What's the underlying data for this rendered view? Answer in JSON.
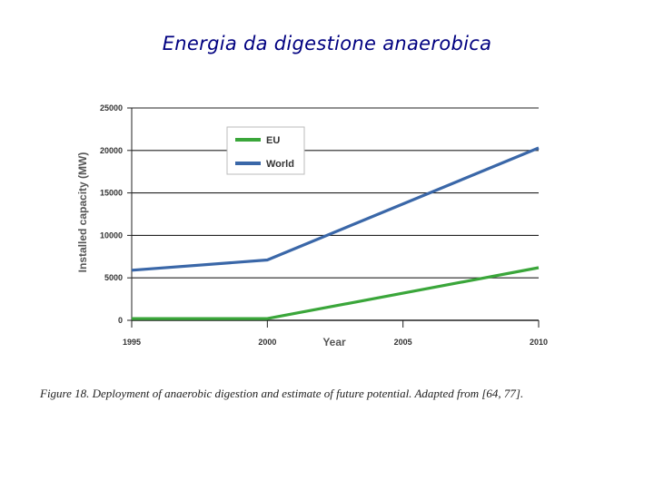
{
  "slide": {
    "title": "Energia da digestione anaerobica"
  },
  "caption": "Figure 18. Deployment of anaerobic digestion and estimate of future potential. Adapted from [64, 77].",
  "colors": {
    "eu": "#3aa63a",
    "world": "#3a67a8",
    "grid": "#222222",
    "legend_border": "#bbbbbb"
  },
  "chart_data": {
    "type": "line",
    "title": "",
    "xlabel": "Year",
    "ylabel": "Installed capacity (MW)",
    "x": [
      1995,
      2000,
      2010
    ],
    "xlim": [
      1995,
      2010
    ],
    "ylim": [
      0,
      25000
    ],
    "x_ticks": [
      "1995",
      "2000",
      "2005",
      "2010"
    ],
    "y_ticks": [
      "0",
      "5000",
      "10000",
      "15000",
      "20000",
      "25000"
    ],
    "grid": true,
    "legend": "top-center",
    "series": [
      {
        "name": "EU",
        "values": [
          200,
          200,
          6200
        ],
        "color": "#3aa63a"
      },
      {
        "name": "World",
        "values": [
          5900,
          7100,
          20300
        ],
        "color": "#3a67a8"
      }
    ]
  }
}
